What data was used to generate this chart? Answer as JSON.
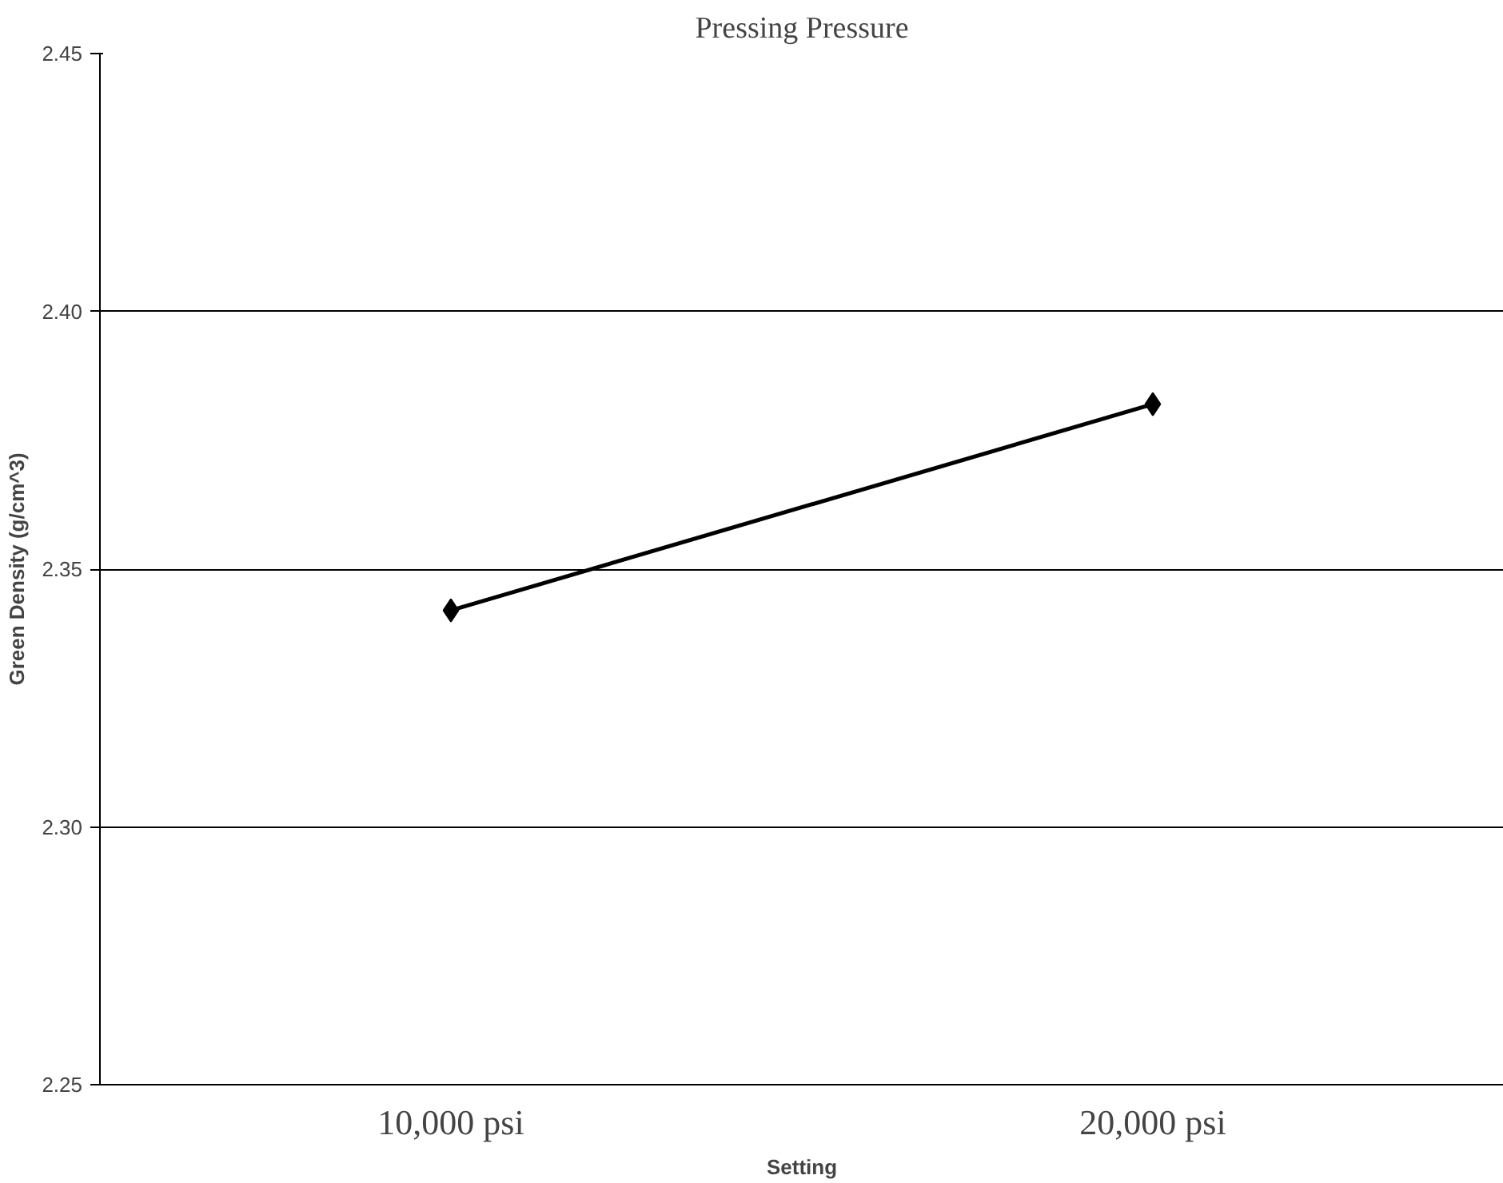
{
  "chart_data": {
    "type": "line",
    "title": "Pressing Pressure",
    "xlabel": "Setting",
    "ylabel": "Green Density (g/cm^3)",
    "categories": [
      "10,000 psi",
      "20,000 psi"
    ],
    "series": [
      {
        "color": "#000000",
        "values": [
          2.342,
          2.382
        ]
      }
    ],
    "ylim": [
      2.25,
      2.45
    ],
    "yticks": [
      {
        "value": 2.25,
        "label": "2.25"
      },
      {
        "value": 2.3,
        "label": "2.30"
      },
      {
        "value": 2.35,
        "label": "2.35"
      },
      {
        "value": 2.4,
        "label": "2.40"
      },
      {
        "value": 2.45,
        "label": "2.45"
      }
    ],
    "grid": "y",
    "marker": "diamond",
    "line_style": "solid"
  }
}
